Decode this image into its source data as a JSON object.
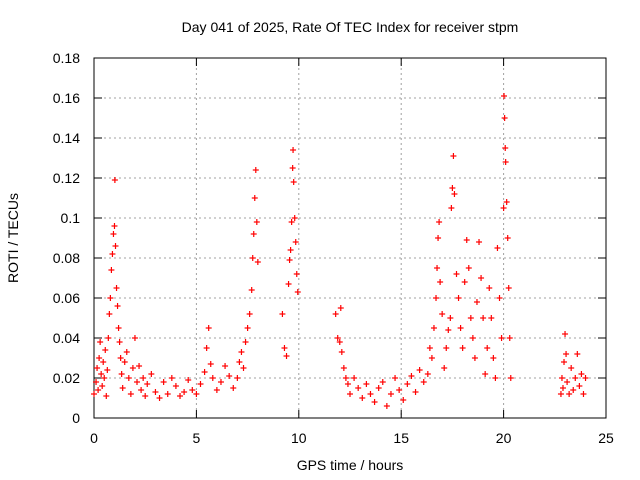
{
  "chart_data": {
    "type": "scatter",
    "title": "Day 041 of 2025, Rate Of TEC Index for receiver stpm",
    "xlabel": "GPS time / hours",
    "ylabel": "ROTI / TECUs",
    "xlim": [
      0,
      25
    ],
    "ylim": [
      0,
      0.18
    ],
    "x_ticks": [
      0,
      5,
      10,
      15,
      20,
      25
    ],
    "x_tick_labels": [
      "0",
      "5",
      "10",
      "15",
      "20",
      "25"
    ],
    "y_ticks": [
      0,
      0.02,
      0.04,
      0.06,
      0.08,
      0.1,
      0.12,
      0.14,
      0.16,
      0.18
    ],
    "y_tick_labels": [
      "0",
      "0.02",
      "0.04",
      "0.06",
      "0.08",
      "0.1",
      "0.12",
      "0.14",
      "0.16",
      "0.18"
    ],
    "grid": true,
    "marker": "plus",
    "series": [
      {
        "name": "ROTI",
        "color": "#ff0000",
        "points": [
          [
            0.0,
            0.012
          ],
          [
            0.1,
            0.018
          ],
          [
            0.15,
            0.025
          ],
          [
            0.2,
            0.014
          ],
          [
            0.25,
            0.03
          ],
          [
            0.3,
            0.038
          ],
          [
            0.35,
            0.022
          ],
          [
            0.4,
            0.016
          ],
          [
            0.45,
            0.028
          ],
          [
            0.5,
            0.02
          ],
          [
            0.55,
            0.034
          ],
          [
            0.6,
            0.011
          ],
          [
            0.65,
            0.024
          ],
          [
            0.7,
            0.04
          ],
          [
            0.75,
            0.052
          ],
          [
            0.8,
            0.06
          ],
          [
            0.85,
            0.074
          ],
          [
            0.9,
            0.082
          ],
          [
            0.95,
            0.092
          ],
          [
            1.0,
            0.096
          ],
          [
            1.02,
            0.119
          ],
          [
            1.05,
            0.086
          ],
          [
            1.1,
            0.065
          ],
          [
            1.15,
            0.056
          ],
          [
            1.2,
            0.045
          ],
          [
            1.25,
            0.038
          ],
          [
            1.3,
            0.03
          ],
          [
            1.35,
            0.022
          ],
          [
            1.4,
            0.015
          ],
          [
            1.5,
            0.028
          ],
          [
            1.6,
            0.033
          ],
          [
            1.7,
            0.02
          ],
          [
            1.8,
            0.012
          ],
          [
            1.9,
            0.025
          ],
          [
            2.0,
            0.04
          ],
          [
            2.1,
            0.018
          ],
          [
            2.2,
            0.026
          ],
          [
            2.3,
            0.014
          ],
          [
            2.4,
            0.02
          ],
          [
            2.5,
            0.011
          ],
          [
            2.6,
            0.017
          ],
          [
            2.8,
            0.022
          ],
          [
            3.0,
            0.013
          ],
          [
            3.2,
            0.01
          ],
          [
            3.4,
            0.018
          ],
          [
            3.6,
            0.012
          ],
          [
            3.8,
            0.02
          ],
          [
            4.0,
            0.016
          ],
          [
            4.2,
            0.011
          ],
          [
            4.4,
            0.013
          ],
          [
            4.6,
            0.019
          ],
          [
            4.8,
            0.014
          ],
          [
            5.0,
            0.012
          ],
          [
            5.2,
            0.017
          ],
          [
            5.4,
            0.023
          ],
          [
            5.5,
            0.035
          ],
          [
            5.6,
            0.045
          ],
          [
            5.7,
            0.027
          ],
          [
            5.8,
            0.02
          ],
          [
            6.0,
            0.014
          ],
          [
            6.2,
            0.018
          ],
          [
            6.4,
            0.026
          ],
          [
            6.6,
            0.021
          ],
          [
            6.8,
            0.015
          ],
          [
            7.0,
            0.02
          ],
          [
            7.1,
            0.028
          ],
          [
            7.2,
            0.033
          ],
          [
            7.3,
            0.025
          ],
          [
            7.4,
            0.038
          ],
          [
            7.5,
            0.045
          ],
          [
            7.6,
            0.052
          ],
          [
            7.7,
            0.064
          ],
          [
            7.75,
            0.08
          ],
          [
            7.8,
            0.092
          ],
          [
            7.85,
            0.11
          ],
          [
            7.9,
            0.124
          ],
          [
            7.95,
            0.098
          ],
          [
            8.0,
            0.078
          ],
          [
            9.2,
            0.052
          ],
          [
            9.3,
            0.035
          ],
          [
            9.4,
            0.031
          ],
          [
            9.5,
            0.067
          ],
          [
            9.55,
            0.079
          ],
          [
            9.6,
            0.084
          ],
          [
            9.65,
            0.098
          ],
          [
            9.7,
            0.125
          ],
          [
            9.72,
            0.134
          ],
          [
            9.75,
            0.118
          ],
          [
            9.8,
            0.1
          ],
          [
            9.85,
            0.088
          ],
          [
            9.9,
            0.072
          ],
          [
            9.95,
            0.063
          ],
          [
            11.8,
            0.052
          ],
          [
            11.9,
            0.04
          ],
          [
            12.0,
            0.038
          ],
          [
            12.05,
            0.055
          ],
          [
            12.1,
            0.033
          ],
          [
            12.2,
            0.025
          ],
          [
            12.3,
            0.02
          ],
          [
            12.4,
            0.017
          ],
          [
            12.5,
            0.012
          ],
          [
            12.7,
            0.02
          ],
          [
            12.9,
            0.015
          ],
          [
            13.1,
            0.01
          ],
          [
            13.3,
            0.017
          ],
          [
            13.5,
            0.012
          ],
          [
            13.7,
            0.008
          ],
          [
            13.9,
            0.015
          ],
          [
            14.1,
            0.018
          ],
          [
            14.3,
            0.006
          ],
          [
            14.5,
            0.012
          ],
          [
            14.7,
            0.02
          ],
          [
            14.9,
            0.014
          ],
          [
            15.1,
            0.009
          ],
          [
            15.3,
            0.017
          ],
          [
            15.5,
            0.021
          ],
          [
            15.7,
            0.013
          ],
          [
            15.9,
            0.024
          ],
          [
            16.1,
            0.018
          ],
          [
            16.3,
            0.022
          ],
          [
            16.4,
            0.035
          ],
          [
            16.5,
            0.03
          ],
          [
            16.6,
            0.045
          ],
          [
            16.7,
            0.06
          ],
          [
            16.75,
            0.075
          ],
          [
            16.8,
            0.09
          ],
          [
            16.85,
            0.098
          ],
          [
            16.9,
            0.068
          ],
          [
            17.0,
            0.052
          ],
          [
            17.1,
            0.025
          ],
          [
            17.2,
            0.035
          ],
          [
            17.3,
            0.044
          ],
          [
            17.4,
            0.05
          ],
          [
            17.45,
            0.105
          ],
          [
            17.5,
            0.115
          ],
          [
            17.55,
            0.131
          ],
          [
            17.6,
            0.112
          ],
          [
            17.7,
            0.072
          ],
          [
            17.8,
            0.06
          ],
          [
            17.9,
            0.045
          ],
          [
            18.0,
            0.035
          ],
          [
            18.1,
            0.068
          ],
          [
            18.2,
            0.089
          ],
          [
            18.3,
            0.075
          ],
          [
            18.4,
            0.05
          ],
          [
            18.5,
            0.04
          ],
          [
            18.6,
            0.03
          ],
          [
            18.7,
            0.058
          ],
          [
            18.8,
            0.088
          ],
          [
            18.9,
            0.07
          ],
          [
            19.0,
            0.05
          ],
          [
            19.1,
            0.022
          ],
          [
            19.2,
            0.035
          ],
          [
            19.3,
            0.065
          ],
          [
            19.4,
            0.05
          ],
          [
            19.5,
            0.03
          ],
          [
            19.6,
            0.02
          ],
          [
            19.7,
            0.085
          ],
          [
            19.8,
            0.06
          ],
          [
            19.9,
            0.04
          ],
          [
            20.0,
            0.105
          ],
          [
            20.02,
            0.161
          ],
          [
            20.05,
            0.15
          ],
          [
            20.08,
            0.135
          ],
          [
            20.1,
            0.128
          ],
          [
            20.15,
            0.108
          ],
          [
            20.2,
            0.09
          ],
          [
            20.25,
            0.065
          ],
          [
            20.3,
            0.04
          ],
          [
            20.35,
            0.02
          ],
          [
            22.8,
            0.012
          ],
          [
            22.85,
            0.02
          ],
          [
            22.9,
            0.015
          ],
          [
            22.95,
            0.028
          ],
          [
            23.0,
            0.042
          ],
          [
            23.05,
            0.032
          ],
          [
            23.1,
            0.018
          ],
          [
            23.2,
            0.012
          ],
          [
            23.3,
            0.025
          ],
          [
            23.4,
            0.014
          ],
          [
            23.5,
            0.02
          ],
          [
            23.6,
            0.032
          ],
          [
            23.7,
            0.016
          ],
          [
            23.8,
            0.022
          ],
          [
            23.9,
            0.012
          ],
          [
            24.0,
            0.02
          ]
        ]
      }
    ]
  }
}
